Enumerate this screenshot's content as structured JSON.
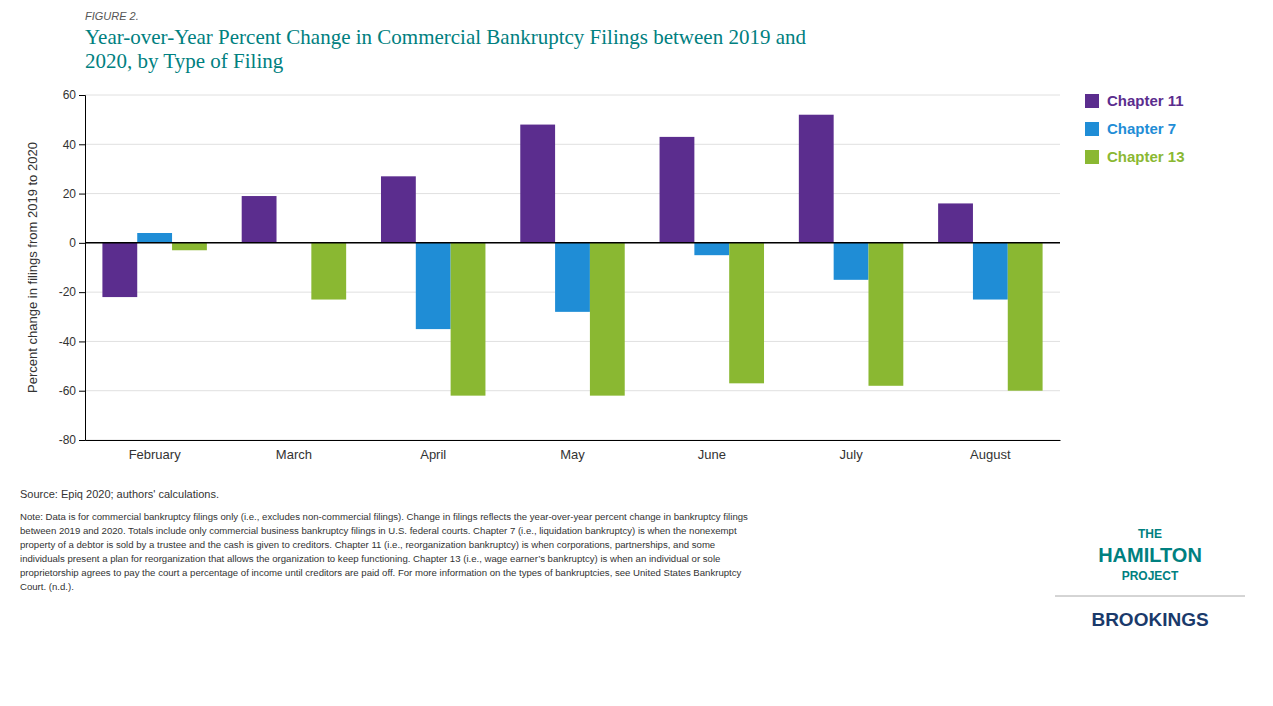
{
  "chart_data": {
    "type": "bar",
    "title": "Year-over-Year Percent Change in Commercial Bankruptcy Filings between 2019 and\n2020, by Type of Filing",
    "ylabel": "Percent change in filings from 2019 to 2020",
    "categories": [
      "February",
      "March",
      "April",
      "May",
      "June",
      "July",
      "August"
    ],
    "series": [
      {
        "name": "Chapter 11",
        "color": "#5b2d8e",
        "values": [
          -22,
          19,
          27,
          48,
          43,
          52,
          16
        ]
      },
      {
        "name": "Chapter 7",
        "color": "#1f8dd6",
        "values": [
          4,
          0,
          -35,
          -28,
          -5,
          -15,
          -23
        ]
      },
      {
        "name": "Chapter 13",
        "color": "#8ab832",
        "values": [
          -3,
          -23,
          -62,
          -62,
          -57,
          -58,
          -60
        ]
      }
    ],
    "ylim": [
      -80,
      60
    ],
    "yticks": [
      -80,
      -60,
      -40,
      -20,
      0,
      20,
      40,
      60
    ],
    "grid": true,
    "legend": "right",
    "annotations": [
      "FIGURE 2.",
      "Source: Epiq 2020; authors' calculations.",
      "Note: Data is for commercial bankruptcy filings only (i.e., excludes non-commercial filings). Change in filings reflects the year-over-year percent change in bankruptcy filings\nbetween 2019 and 2020. Totals include only commercial business bankruptcy filings in U.S. federal courts. Chapter 7 (i.e., liquidation bankruptcy) is when the nonexempt\nproperty of a debtor is sold by a trustee and the cash is given to creditors. Chapter 11 (i.e., reorganization bankruptcy) is when corporations, partnerships, and some\nindividuals present a plan for reorganization that allows the organization to keep functioning. Chapter 13 (i.e., wage earner’s bankruptcy) is when an individual or sole\nproprietorship agrees to pay the court a percentage of income until creditors are paid off. For more information on the types of bankruptcies, see United States Bankruptcy\nCourt. (n.d.).",
      "THE",
      "HAMILTON",
      "PROJECT",
      "BROOKINGS"
    ]
  }
}
